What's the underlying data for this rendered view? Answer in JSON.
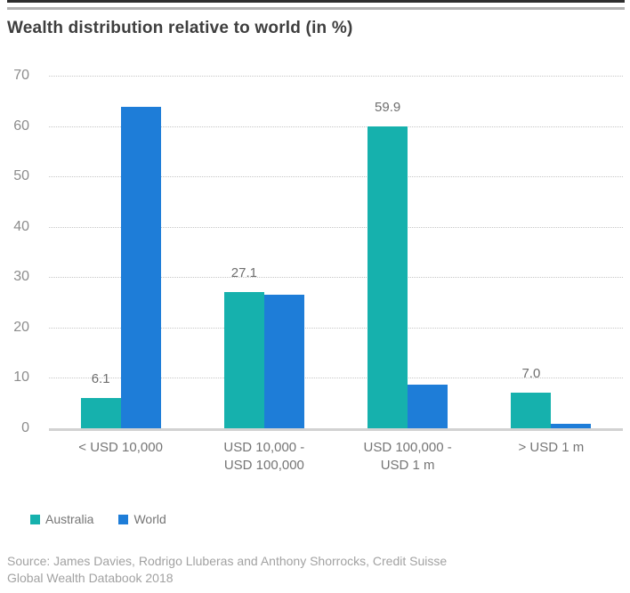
{
  "title": "Wealth distribution relative to world (in %)",
  "source": "Source: James Davies, Rodrigo Lluberas and Anthony Shorrocks, Credit Suisse\nGlobal Wealth Databook 2018",
  "colors": {
    "australia": "#16b1ad",
    "world": "#1e7dd8"
  },
  "chart_data": {
    "type": "bar",
    "title": "Wealth distribution relative to world (in %)",
    "categories": [
      "< USD 10,000",
      "USD 10,000 -\nUSD 100,000",
      "USD 100,000 -\nUSD 1 m",
      "> USD 1 m"
    ],
    "series": [
      {
        "name": "Australia",
        "color": "#16b1ad",
        "values": [
          6.1,
          27.1,
          59.9,
          7.0
        ],
        "data_labels": [
          "6.1",
          "27.1",
          "59.9",
          "7.0"
        ]
      },
      {
        "name": "World",
        "color": "#1e7dd8",
        "values": [
          63.9,
          26.6,
          8.7,
          0.8
        ],
        "data_labels": [
          null,
          null,
          null,
          null
        ]
      }
    ],
    "xlabel": "",
    "ylabel": "",
    "ylim": [
      0,
      70
    ],
    "yticks": [
      0,
      10,
      20,
      30,
      40,
      50,
      60,
      70
    ],
    "grid": "horizontal-dotted",
    "legend_position": "bottom-left"
  }
}
